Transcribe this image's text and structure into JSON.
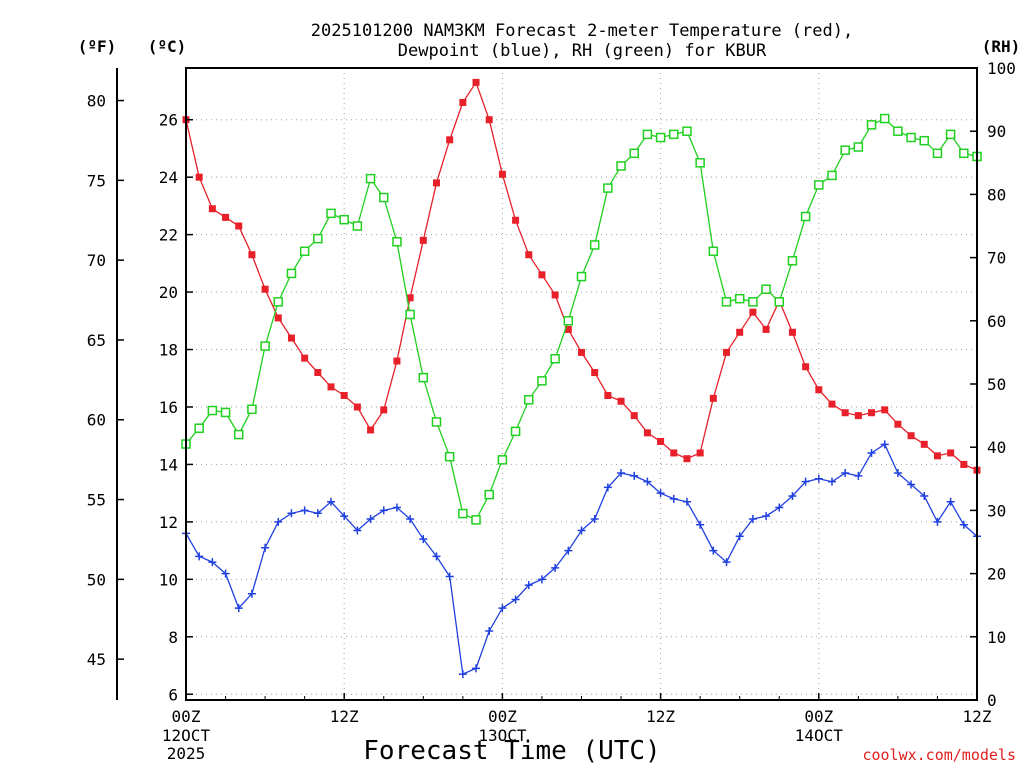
{
  "chart_data": {
    "type": "line",
    "title": "2025101200 NAM3KM Forecast 2-meter Temperature (red),",
    "subtitle": "Dewpoint (blue), RH (green) for KBUR",
    "xlabel": "Forecast Time (UTC)",
    "credit": "coolwx.com/models",
    "units": {
      "fahrenheit": "(ºF)",
      "celsius": "(ºC)",
      "rh": "(RH)"
    },
    "xlim": [
      0,
      60
    ],
    "ylim_c": [
      5.8,
      27.8
    ],
    "ylim_f": [
      42.44,
      82.04
    ],
    "ylim_rh": [
      0,
      100
    ],
    "f_ticks": [
      "45",
      "50",
      "55",
      "60",
      "65",
      "70",
      "75",
      "80"
    ],
    "c_ticks": [
      "6",
      "8",
      "10",
      "12",
      "14",
      "16",
      "18",
      "20",
      "22",
      "24",
      "26"
    ],
    "rh_ticks": [
      "0",
      "10",
      "20",
      "30",
      "40",
      "50",
      "60",
      "70",
      "80",
      "90",
      "100"
    ],
    "x_ticks": [
      {
        "hour": 0,
        "label": "00Z",
        "date": [
          "12OCT",
          "2025"
        ]
      },
      {
        "hour": 12,
        "label": "12Z",
        "date": []
      },
      {
        "hour": 24,
        "label": "00Z",
        "date": [
          "13OCT"
        ]
      },
      {
        "hour": 36,
        "label": "12Z",
        "date": []
      },
      {
        "hour": 48,
        "label": "00Z",
        "date": [
          "14OCT"
        ]
      },
      {
        "hour": 60,
        "label": "12Z",
        "date": []
      }
    ],
    "series": [
      {
        "name": "2-meter Temperature (°C)",
        "color": "#e8202a",
        "marker": "filled-square",
        "axis": "celsius",
        "x": [
          0,
          1,
          2,
          3,
          4,
          5,
          6,
          7,
          8,
          9,
          10,
          11,
          12,
          13,
          14,
          15,
          16,
          17,
          18,
          19,
          20,
          21,
          22,
          23,
          24,
          25,
          26,
          27,
          28,
          29,
          30,
          31,
          32,
          33,
          34,
          35,
          36,
          37,
          38,
          39,
          40,
          41,
          42,
          43,
          44,
          45,
          46,
          47,
          48,
          49,
          50,
          51,
          52,
          53,
          54,
          55,
          56,
          57,
          58,
          59,
          60
        ],
        "values": [
          26.0,
          24.0,
          22.9,
          22.6,
          22.3,
          21.3,
          20.1,
          19.1,
          18.4,
          17.7,
          17.2,
          16.7,
          16.4,
          16.0,
          15.2,
          15.9,
          17.6,
          19.8,
          21.8,
          23.8,
          25.3,
          26.6,
          27.3,
          26.0,
          24.1,
          22.5,
          21.3,
          20.6,
          19.9,
          18.7,
          17.9,
          17.2,
          16.4,
          16.2,
          15.7,
          15.1,
          14.8,
          14.4,
          14.2,
          14.4,
          16.3,
          17.9,
          18.6,
          19.3,
          18.7,
          19.7,
          18.6,
          17.4,
          16.6,
          16.1,
          15.8,
          15.7,
          15.8,
          15.9,
          15.4,
          15.0,
          14.7,
          14.3,
          14.4,
          14.0,
          13.8
        ]
      },
      {
        "name": "2-meter Dewpoint (°C)",
        "color": "#2040e0",
        "marker": "plus",
        "axis": "celsius",
        "x": [
          0,
          1,
          2,
          3,
          4,
          5,
          6,
          7,
          8,
          9,
          10,
          11,
          12,
          13,
          14,
          15,
          16,
          17,
          18,
          19,
          20,
          21,
          22,
          23,
          24,
          25,
          26,
          27,
          28,
          29,
          30,
          31,
          32,
          33,
          34,
          35,
          36,
          37,
          38,
          39,
          40,
          41,
          42,
          43,
          44,
          45,
          46,
          47,
          48,
          49,
          50,
          51,
          52,
          53,
          54,
          55,
          56,
          57,
          58,
          59,
          60
        ],
        "values": [
          11.6,
          10.8,
          10.6,
          10.2,
          9.0,
          9.5,
          11.1,
          12.0,
          12.3,
          12.4,
          12.3,
          12.7,
          12.2,
          11.7,
          12.1,
          12.4,
          12.5,
          12.1,
          11.4,
          10.8,
          10.1,
          6.7,
          6.9,
          8.2,
          9.0,
          9.3,
          9.8,
          10.0,
          10.4,
          11.0,
          11.7,
          12.1,
          13.2,
          13.7,
          13.6,
          13.4,
          13.0,
          12.8,
          12.7,
          11.9,
          11.0,
          10.6,
          11.5,
          12.1,
          12.2,
          12.5,
          12.9,
          13.4,
          13.5,
          13.4,
          13.7,
          13.6,
          14.4,
          14.7,
          13.7,
          13.3,
          12.9,
          12.0,
          12.7,
          11.9,
          11.5
        ]
      },
      {
        "name": "Relative Humidity (%)",
        "color": "#20d020",
        "marker": "open-square",
        "axis": "rh",
        "x": [
          0,
          1,
          2,
          3,
          4,
          5,
          6,
          7,
          8,
          9,
          10,
          11,
          12,
          13,
          14,
          15,
          16,
          17,
          18,
          19,
          20,
          21,
          22,
          23,
          24,
          25,
          26,
          27,
          28,
          29,
          30,
          31,
          32,
          33,
          34,
          35,
          36,
          37,
          38,
          39,
          40,
          41,
          42,
          43,
          44,
          45,
          46,
          47,
          48,
          49,
          50,
          51,
          52,
          53,
          54,
          55,
          56,
          57,
          58,
          59,
          60
        ],
        "values": [
          40.5,
          43.0,
          45.8,
          45.5,
          42.0,
          46.0,
          56.0,
          63.0,
          67.5,
          71.0,
          73.0,
          77.0,
          76.0,
          75.0,
          82.5,
          79.5,
          72.5,
          61.0,
          51.0,
          44.0,
          38.5,
          29.5,
          28.5,
          32.5,
          38.0,
          42.5,
          47.5,
          50.5,
          54.0,
          60.0,
          67.0,
          72.0,
          81.0,
          84.5,
          86.5,
          89.5,
          89.0,
          89.5,
          90.0,
          85.0,
          71.0,
          63.0,
          63.5,
          63.0,
          65.0,
          63.0,
          69.5,
          76.5,
          81.5,
          83.0,
          87.0,
          87.5,
          91.0,
          92.0,
          90.0,
          89.0,
          88.5,
          86.5,
          89.5,
          86.5,
          86.0
        ]
      }
    ]
  }
}
